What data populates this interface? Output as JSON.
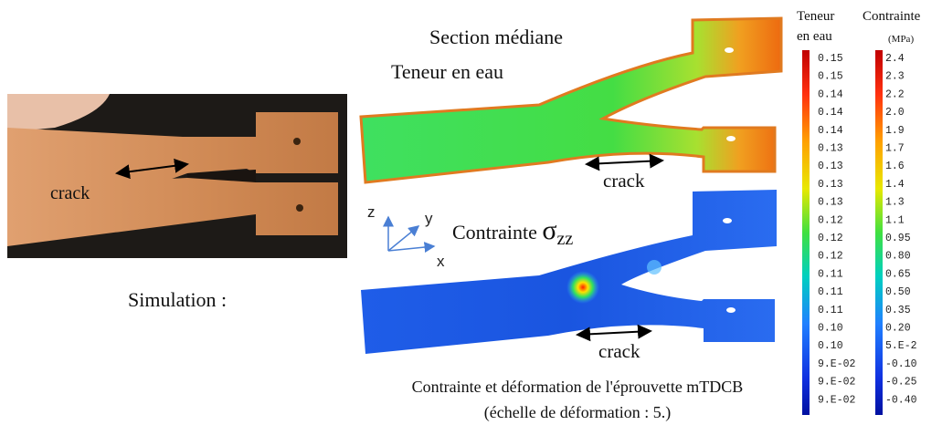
{
  "photo": {
    "crack_label": "crack"
  },
  "simulation_label": "Simulation :",
  "section_title": "Section médiane",
  "water_panel": {
    "title": "Teneur en eau",
    "crack_label": "crack"
  },
  "stress_panel": {
    "title": "Contrainte",
    "symbol": "σ",
    "subscript": "zz",
    "crack_label": "crack"
  },
  "axes": {
    "z": "z",
    "y": "y",
    "x": "x"
  },
  "caption": {
    "line1": "Contrainte et déformation de l'éprouvette mTDCB",
    "line2": "(échelle de déformation : 5.)"
  },
  "water_scale": {
    "title_line1": "Teneur",
    "title_line2": "en eau",
    "labels": [
      "0.15",
      "0.15",
      "0.14",
      "0.14",
      "0.14",
      "0.13",
      "0.13",
      "0.13",
      "0.13",
      "0.12",
      "0.12",
      "0.12",
      "0.11",
      "0.11",
      "0.11",
      "0.10",
      "0.10",
      "9.E-02",
      "9.E-02",
      "9.E-02"
    ]
  },
  "stress_scale": {
    "title": "Contrainte",
    "unit": "(MPa)",
    "labels": [
      "2.4",
      "2.3",
      "2.2",
      "2.0",
      "1.9",
      "1.7",
      "1.6",
      "1.4",
      "1.3",
      "1.1",
      "0.95",
      "0.80",
      "0.65",
      "0.50",
      "0.35",
      "0.20",
      "5.E-2",
      "-0.10",
      "-0.25",
      "-0.40"
    ]
  }
}
